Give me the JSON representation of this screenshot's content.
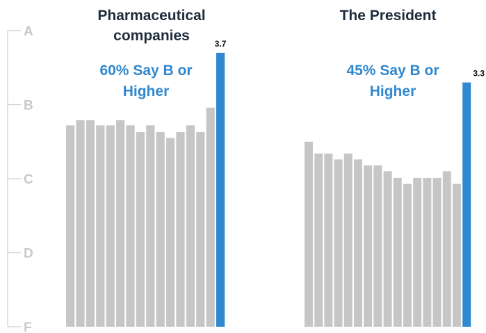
{
  "chart_data": [
    {
      "type": "bar",
      "title": "Pharmaceutical companies",
      "subtitle": "60% Say B or Higher",
      "y_axis": {
        "tick_labels": [
          "A",
          "B",
          "C",
          "D",
          "F"
        ],
        "tick_values": [
          4,
          3,
          2,
          1,
          0
        ],
        "ylim": [
          0,
          4
        ]
      },
      "values": [
        2.72,
        2.79,
        2.79,
        2.72,
        2.72,
        2.79,
        2.72,
        2.63,
        2.72,
        2.63,
        2.55,
        2.63,
        2.72,
        2.63,
        2.96,
        3.7
      ],
      "highlight_value_label": "3.7",
      "colors": {
        "bar": "#c6c6c6",
        "highlight": "#2f88d0"
      },
      "grid": false
    },
    {
      "type": "bar",
      "title": "The President",
      "subtitle": "45% Say B or Higher",
      "y_axis": {
        "tick_labels": [
          "A",
          "B",
          "C",
          "D",
          "F"
        ],
        "tick_values": [
          4,
          3,
          2,
          1,
          0
        ],
        "ylim": [
          0,
          4
        ]
      },
      "values": [
        2.5,
        2.34,
        2.34,
        2.26,
        2.34,
        2.26,
        2.18,
        2.18,
        2.1,
        2.01,
        1.93,
        2.01,
        2.01,
        2.01,
        2.1,
        1.93,
        3.3
      ],
      "highlight_value_label": "3.3",
      "colors": {
        "bar": "#c6c6c6",
        "highlight": "#2f88d0"
      },
      "grid": false
    }
  ]
}
